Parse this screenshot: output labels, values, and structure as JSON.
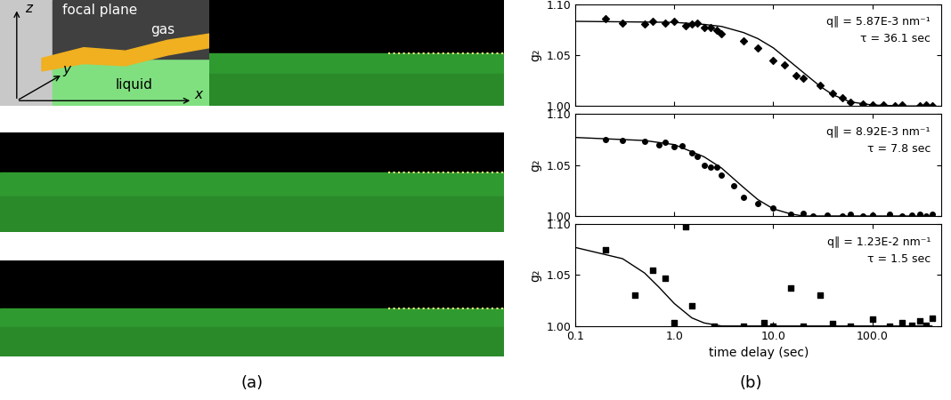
{
  "panel_labels": {
    "a": "(a)",
    "b": "(b)"
  },
  "panel_a": {
    "inset": {
      "focal_plane": "focal plane",
      "gas": "gas",
      "liquid": "liquid",
      "axis_x": "x",
      "axis_y": "y",
      "axis_z": "z"
    }
  },
  "chart_data": [
    {
      "type": "scatter",
      "ylabel": "g₂",
      "tick_labels": "y",
      "annotations": [
        "q∥ = 5.87E-3 nm⁻¹",
        "τ = 36.1 sec"
      ],
      "xlim": [
        0.1,
        500
      ],
      "ylim": [
        1.0,
        1.1
      ],
      "log": "x",
      "xticks": [
        {
          "value": 0.1,
          "label": "0.1"
        },
        {
          "value": 1,
          "label": "1.0"
        },
        {
          "value": 10,
          "label": "10.0"
        },
        {
          "value": 100,
          "label": "100.0"
        }
      ],
      "yticks": [
        {
          "value": 1.0,
          "label": "1.00"
        },
        {
          "value": 1.05,
          "label": "1.05"
        },
        {
          "value": 1.1,
          "label": "1.10"
        }
      ],
      "series": [
        {
          "type": "scatter",
          "marker": "diamond",
          "color": "#000000",
          "x": [
            0.2,
            0.3,
            0.5,
            0.6,
            0.8,
            1.0,
            1.3,
            1.5,
            1.7,
            2.0,
            2.3,
            2.7,
            3.0,
            5,
            7,
            10,
            13,
            17,
            20,
            30,
            40,
            50,
            60,
            80,
            100,
            130,
            170,
            200,
            300,
            350,
            400
          ],
          "values": [
            1.086,
            1.081,
            1.08,
            1.083,
            1.081,
            1.083,
            1.079,
            1.08,
            1.081,
            1.077,
            1.077,
            1.074,
            1.071,
            1.064,
            1.057,
            1.045,
            1.04,
            1.03,
            1.027,
            1.02,
            1.012,
            1.008,
            1.004,
            1.002,
            1.001,
            1.001,
            1.0,
            1.001,
            1.0,
            1.001,
            1.0
          ]
        },
        {
          "type": "line",
          "line_style": "solid",
          "color": "#000000",
          "x": [
            0.1,
            1,
            2,
            3,
            5,
            7,
            10,
            15,
            20,
            30,
            40,
            60,
            100,
            200,
            400
          ],
          "values": [
            1.083,
            1.082,
            1.08,
            1.078,
            1.072,
            1.066,
            1.057,
            1.043,
            1.033,
            1.019,
            1.011,
            1.004,
            1.001,
            1.0,
            1.0
          ]
        }
      ]
    },
    {
      "type": "scatter",
      "ylabel": "g₂",
      "tick_labels": "y",
      "annotations": [
        "q∥ = 8.92E-3 nm⁻¹",
        "τ = 7.8 sec"
      ],
      "xlim": [
        0.1,
        500
      ],
      "ylim": [
        1.0,
        1.1
      ],
      "log": "x",
      "xticks": [
        {
          "value": 0.1,
          "label": "0.1"
        },
        {
          "value": 1,
          "label": "1.0"
        },
        {
          "value": 10,
          "label": "10.0"
        },
        {
          "value": 100,
          "label": "100.0"
        }
      ],
      "yticks": [
        {
          "value": 1.0,
          "label": "1.00"
        },
        {
          "value": 1.05,
          "label": "1.05"
        },
        {
          "value": 1.1,
          "label": "1.10"
        }
      ],
      "series": [
        {
          "type": "scatter",
          "marker": "circle",
          "color": "#000000",
          "x": [
            0.2,
            0.3,
            0.5,
            0.7,
            0.8,
            1.0,
            1.2,
            1.5,
            1.7,
            2.0,
            2.3,
            2.7,
            3.0,
            4,
            5,
            7,
            10,
            15,
            20,
            25,
            35,
            50,
            60,
            80,
            100,
            150,
            200,
            250,
            300,
            350,
            400
          ],
          "values": [
            1.075,
            1.074,
            1.073,
            1.07,
            1.072,
            1.068,
            1.069,
            1.062,
            1.058,
            1.05,
            1.048,
            1.048,
            1.04,
            1.03,
            1.018,
            1.012,
            1.008,
            1.002,
            1.003,
            1.0,
            1.001,
            1.0,
            1.002,
            1.0,
            1.001,
            1.002,
            1.0,
            1.001,
            1.002,
            1.0,
            1.002
          ]
        },
        {
          "type": "line",
          "line_style": "solid",
          "color": "#000000",
          "x": [
            0.1,
            0.5,
            1,
            2,
            3,
            5,
            7,
            10,
            15,
            20,
            400
          ],
          "values": [
            1.077,
            1.074,
            1.07,
            1.058,
            1.047,
            1.028,
            1.016,
            1.007,
            1.002,
            1.0,
            1.0
          ]
        }
      ]
    },
    {
      "type": "scatter",
      "ylabel": "g₂",
      "xlabel": "time delay (sec)",
      "annotations": [
        "q∥ = 1.23E-2 nm⁻¹",
        "τ = 1.5 sec"
      ],
      "xlim": [
        0.1,
        500
      ],
      "ylim": [
        1.0,
        1.1
      ],
      "log": "x",
      "xticks": [
        {
          "value": 0.1,
          "label": "0.1"
        },
        {
          "value": 1,
          "label": "1.0"
        },
        {
          "value": 10,
          "label": "10.0"
        },
        {
          "value": 100,
          "label": "100.0"
        }
      ],
      "yticks": [
        {
          "value": 1.0,
          "label": "1.00"
        },
        {
          "value": 1.05,
          "label": "1.05"
        },
        {
          "value": 1.1,
          "label": "1.10"
        }
      ],
      "series": [
        {
          "type": "scatter",
          "marker": "square",
          "color": "#000000",
          "x": [
            0.2,
            0.4,
            0.6,
            0.8,
            1.0,
            1.3,
            1.5,
            2.5,
            5,
            8,
            10,
            15,
            20,
            30,
            40,
            60,
            100,
            150,
            200,
            250,
            300,
            350,
            400
          ],
          "values": [
            1.075,
            1.03,
            1.055,
            1.047,
            1.003,
            1.097,
            1.02,
            1.0,
            1.0,
            1.003,
            1.0,
            1.037,
            1.0,
            1.03,
            1.002,
            1.0,
            1.007,
            1.0,
            1.003,
            1.001,
            1.005,
            1.001,
            1.008
          ]
        },
        {
          "type": "line",
          "line_style": "solid",
          "color": "#000000",
          "x": [
            0.1,
            0.3,
            0.5,
            0.7,
            1,
            1.5,
            2,
            3,
            400
          ],
          "values": [
            1.077,
            1.066,
            1.052,
            1.038,
            1.022,
            1.008,
            1.003,
            1.0,
            1.0
          ]
        }
      ]
    }
  ]
}
